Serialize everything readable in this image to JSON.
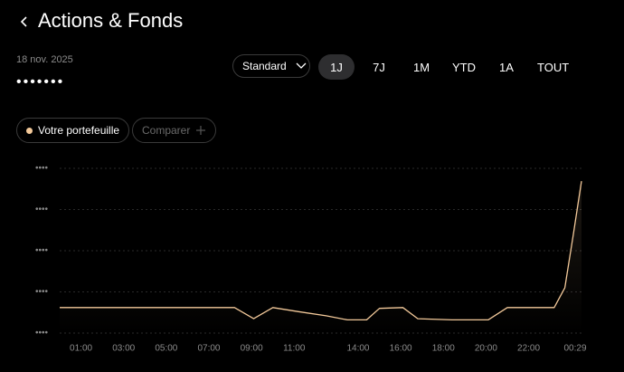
{
  "header": {
    "title": "Actions & Fonds"
  },
  "summary": {
    "date": "18 nov. 2025",
    "balance": "•••••••"
  },
  "controls": {
    "view": "Standard",
    "periods": [
      "1J",
      "7J",
      "1M",
      "YTD",
      "1A",
      "TOUT"
    ],
    "selected": 0
  },
  "chips": {
    "compare": "Comparer"
  },
  "chart_data": {
    "type": "line",
    "x": [
      0,
      8.2,
      9.1,
      10.0,
      11.2,
      12.5,
      13.5,
      14.4,
      15.0,
      16.1,
      16.8,
      18.4,
      20.1,
      21.0,
      23.2,
      23.7,
      24.1,
      24.48
    ],
    "series": [
      {
        "name": "Votre portefeuille",
        "color": "#f3c99a",
        "values": [
          0.62,
          0.62,
          0.35,
          0.62,
          0.52,
          0.42,
          0.32,
          0.32,
          0.6,
          0.62,
          0.35,
          0.32,
          0.32,
          0.62,
          0.62,
          1.1,
          2.4,
          3.69
        ]
      }
    ],
    "xlim": [
      0,
      24.48
    ],
    "xticks": [
      {
        "value": 1,
        "label": "01:00"
      },
      {
        "value": 3,
        "label": "03:00"
      },
      {
        "value": 5,
        "label": "05:00"
      },
      {
        "value": 7,
        "label": "07:00"
      },
      {
        "value": 9,
        "label": "09:00"
      },
      {
        "value": 11,
        "label": "11:00"
      },
      {
        "value": 14,
        "label": "14:00"
      },
      {
        "value": 16,
        "label": "16:00"
      },
      {
        "value": 18,
        "label": "18:00"
      },
      {
        "value": 20,
        "label": "20:00"
      },
      {
        "value": 22,
        "label": "22:00"
      },
      {
        "value": 24.48,
        "label": "00:29"
      }
    ],
    "ylim": [
      0,
      4
    ],
    "yticks": [
      {
        "value": 0,
        "label": "••••"
      },
      {
        "value": 1,
        "label": "••••"
      },
      {
        "value": 2,
        "label": "••••"
      },
      {
        "value": 3,
        "label": "••••"
      },
      {
        "value": 4,
        "label": "••••"
      }
    ],
    "grid": true
  }
}
